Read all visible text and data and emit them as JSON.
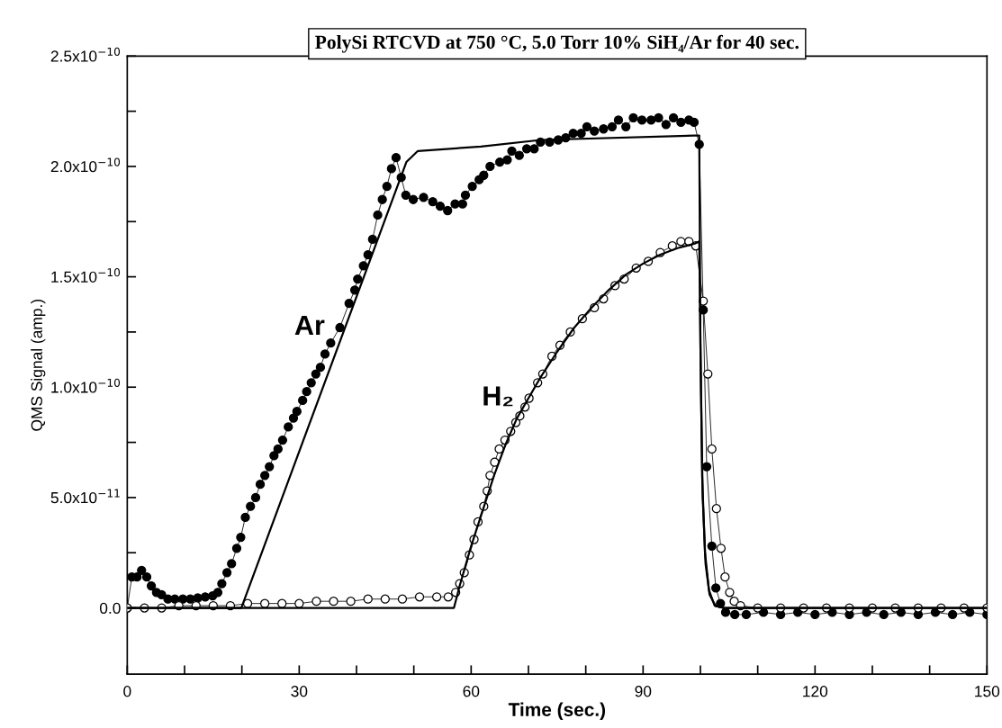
{
  "chart_data": {
    "type": "line",
    "title": "PolySi RTCVD at 750 °C, 5.0 Torr 10% SiH₄/Ar for 40 sec.",
    "xlabel": "Time (sec.)",
    "ylabel": "QMS Signal (amp.)",
    "xlim": [
      0,
      150
    ],
    "ylim": [
      -3e-11,
      2.5e-10
    ],
    "xticks": [
      0,
      {
        "value": 10,
        "label": null
      },
      {
        "value": 20,
        "label": null
      },
      30,
      {
        "value": 40,
        "label": null
      },
      {
        "value": 50,
        "label": null
      },
      60,
      {
        "value": 70,
        "label": null
      },
      {
        "value": 80,
        "label": null
      },
      90,
      {
        "value": 100,
        "label": null
      },
      {
        "value": 110,
        "label": null
      },
      120,
      {
        "value": 130,
        "label": null
      },
      {
        "value": 140,
        "label": null
      },
      150
    ],
    "yticks": [
      {
        "value": 0,
        "label": "0.0"
      },
      {
        "value": 2.5e-11,
        "label": null
      },
      {
        "value": 5e-11,
        "label": "5.0x10$^{−11}$"
      },
      {
        "value": 7.5e-11,
        "label": null
      },
      {
        "value": 1e-10,
        "label": "1.0x10$^{−10}$"
      },
      {
        "value": 1.25e-10,
        "label": null
      },
      {
        "value": 1.5e-10,
        "label": "1.5x10$^{−10}$"
      },
      {
        "value": 1.75e-10,
        "label": null
      },
      {
        "value": 2e-10,
        "label": "2.0x10$^{−10}$"
      },
      {
        "value": 2.25e-10,
        "label": null
      },
      {
        "value": 2.5e-10,
        "label": "2.5x10$^{−10}$"
      }
    ],
    "grid": false,
    "legend": false,
    "series": [
      {
        "name": "Ar",
        "color": "#000000",
        "marker": "circle",
        "x": [
          0,
          0.8,
          1.7,
          2.5,
          3.4,
          4.2,
          5.1,
          6.0,
          7.1,
          8.3,
          9.7,
          11.0,
          12.3,
          13.6,
          14.9,
          15.8,
          16.5,
          17.4,
          18.2,
          19.1,
          19.8,
          20.6,
          21.5,
          22.4,
          23.2,
          24.0,
          24.8,
          25.6,
          26.3,
          27.1,
          28.1,
          29.0,
          29.6,
          30.6,
          31.3,
          32.1,
          32.9,
          33.7,
          34.5,
          35.5,
          37.1,
          38.7,
          39.7,
          40.2,
          41.2,
          42.0,
          42.8,
          43.7,
          44.5,
          45.3,
          46.1,
          46.9,
          47.8,
          48.6,
          49.9,
          51.7,
          53.3,
          54.6,
          55.9,
          57.2,
          58.5,
          59.0,
          60.2,
          61.4,
          62.2,
          63.3,
          65.0,
          66.3,
          67.1,
          68.4,
          69.7,
          71.0,
          72.1,
          73.7,
          75.2,
          76.5,
          77.8,
          79.2,
          80.2,
          81.5,
          83.1,
          84.6,
          85.7,
          87.0,
          88.3,
          89.8,
          91.4,
          92.7,
          94.0,
          95.3,
          96.6,
          98.0,
          98.9,
          99.8,
          100.5,
          101.1,
          102.0,
          102.7,
          103.5,
          104.4,
          106,
          108,
          111,
          114,
          117,
          120,
          123,
          126,
          129,
          132,
          135,
          138,
          141,
          144,
          147,
          150
        ],
        "values": [
          0,
          1.4e-11,
          1.4e-11,
          1.7e-11,
          1.4e-11,
          1e-11,
          7e-12,
          6e-12,
          4e-12,
          4e-12,
          4e-12,
          4e-12,
          4.5e-12,
          5e-12,
          5.5e-12,
          7e-12,
          1.1e-11,
          1.6e-11,
          2e-11,
          2.7e-11,
          3.2e-11,
          4.1e-11,
          4.6e-11,
          5e-11,
          5.6e-11,
          6e-11,
          6.4e-11,
          6.9e-11,
          7.2e-11,
          7.6e-11,
          8.2e-11,
          8.6e-11,
          8.9e-11,
          9.4e-11,
          9.8e-11,
          1.02e-10,
          1.06e-10,
          1.09e-10,
          1.15e-10,
          1.2e-10,
          1.27e-10,
          1.38e-10,
          1.44e-10,
          1.49e-10,
          1.55e-10,
          1.6e-10,
          1.67e-10,
          1.78e-10,
          1.85e-10,
          1.91e-10,
          1.99e-10,
          2.04e-10,
          1.95e-10,
          1.87e-10,
          1.85e-10,
          1.86e-10,
          1.84e-10,
          1.82e-10,
          1.8e-10,
          1.83e-10,
          1.83e-10,
          1.87e-10,
          1.91e-10,
          1.94e-10,
          1.96e-10,
          2e-10,
          2.02e-10,
          2.03e-10,
          2.07e-10,
          2.05e-10,
          2.08e-10,
          2.08e-10,
          2.11e-10,
          2.11e-10,
          2.12e-10,
          2.13e-10,
          2.15e-10,
          2.15e-10,
          2.18e-10,
          2.16e-10,
          2.17e-10,
          2.18e-10,
          2.21e-10,
          2.18e-10,
          2.22e-10,
          2.21e-10,
          2.21e-10,
          2.22e-10,
          2.19e-10,
          2.22e-10,
          2.2e-10,
          2.21e-10,
          2.2e-10,
          2.1e-10,
          1.35e-10,
          6.4e-11,
          2.8e-11,
          9e-12,
          2e-12,
          -2e-12,
          -3e-12,
          -3e-12,
          -2e-12,
          -3e-12,
          -2e-12,
          -3e-12,
          -2e-12,
          -3e-12,
          -2e-12,
          -3e-12,
          -2e-12,
          -3e-12,
          -2e-12,
          -3e-12,
          -2e-12,
          -3e-12
        ]
      },
      {
        "name": "H₂",
        "color": "#ffffff",
        "marker": "circle",
        "x": [
          0,
          3,
          6,
          9,
          12,
          15,
          18,
          21,
          24,
          27,
          30,
          33,
          36,
          39,
          42,
          45,
          48,
          51,
          54,
          56,
          57.3,
          58,
          58.8,
          59.7,
          60.5,
          61.2,
          62.2,
          62.8,
          63.3,
          64.1,
          64.9,
          65.9,
          66.9,
          67.8,
          68.5,
          69.4,
          70.1,
          71.6,
          72.5,
          74.1,
          75.5,
          77.3,
          79.4,
          81.5,
          83.1,
          85.1,
          86.7,
          88.8,
          90.9,
          93.0,
          95.1,
          96.6,
          98.0,
          99.2,
          100.5,
          101.3,
          102.0,
          102.8,
          103.6,
          104.3,
          105.1,
          105.9,
          107,
          110,
          114,
          118,
          122,
          126,
          130,
          134,
          138,
          142,
          146,
          150
        ],
        "values": [
          0,
          0,
          0,
          1e-12,
          1e-12,
          1e-12,
          1e-12,
          2e-12,
          2e-12,
          2e-12,
          2e-12,
          3e-12,
          3e-12,
          3e-12,
          4e-12,
          4e-12,
          4e-12,
          5e-12,
          5e-12,
          5e-12,
          7e-12,
          1.1e-11,
          1.6e-11,
          2.4e-11,
          3.1e-11,
          3.9e-11,
          4.6e-11,
          5.3e-11,
          6e-11,
          6.6e-11,
          7.2e-11,
          7.6e-11,
          8e-11,
          8.4e-11,
          8.7e-11,
          9.1e-11,
          9.5e-11,
          1.02e-10,
          1.06e-10,
          1.14e-10,
          1.19e-10,
          1.25e-10,
          1.31e-10,
          1.36e-10,
          1.4e-10,
          1.46e-10,
          1.49e-10,
          1.54e-10,
          1.57e-10,
          1.61e-10,
          1.64e-10,
          1.66e-10,
          1.66e-10,
          1.64e-10,
          1.39e-10,
          1.06e-10,
          7.2e-11,
          4.5e-11,
          2.7e-11,
          1.4e-11,
          7e-12,
          3e-12,
          1e-12,
          0,
          0,
          0,
          0,
          0,
          0,
          0,
          0,
          0,
          0,
          0
        ]
      },
      {
        "color": "#000000",
        "marker": "none",
        "x": [
          0,
          19.9,
          48.7,
          50.7,
          61.7,
          72.2,
          99.0,
          99.8,
          100.0,
          100.3,
          100.8,
          101.5,
          102.5,
          104,
          150
        ],
        "values": [
          0,
          0,
          2.02e-10,
          2.07e-10,
          2.09e-10,
          2.12e-10,
          2.14e-10,
          2.14e-10,
          1.2e-10,
          6e-11,
          2.5e-11,
          8e-12,
          1e-12,
          0,
          0
        ]
      },
      {
        "color": "#000000",
        "marker": "none",
        "x": [
          0,
          57,
          58,
          60,
          62,
          64,
          66,
          68,
          70,
          72,
          75,
          78,
          81,
          84,
          87,
          90,
          93,
          96,
          99,
          99.8,
          100.1,
          100.4,
          100.9,
          101.6,
          102.6,
          104,
          150
        ],
        "values": [
          0,
          0,
          1e-11,
          2.8e-11,
          4.4e-11,
          6e-11,
          7.4e-11,
          8.6e-11,
          9.5e-11,
          1.04e-10,
          1.16e-10,
          1.27e-10,
          1.36e-10,
          1.44e-10,
          1.51e-10,
          1.56e-10,
          1.6e-10,
          1.63e-10,
          1.65e-10,
          1.66e-10,
          1e-10,
          5e-11,
          2e-11,
          6e-12,
          1e-12,
          0,
          0
        ]
      }
    ]
  }
}
